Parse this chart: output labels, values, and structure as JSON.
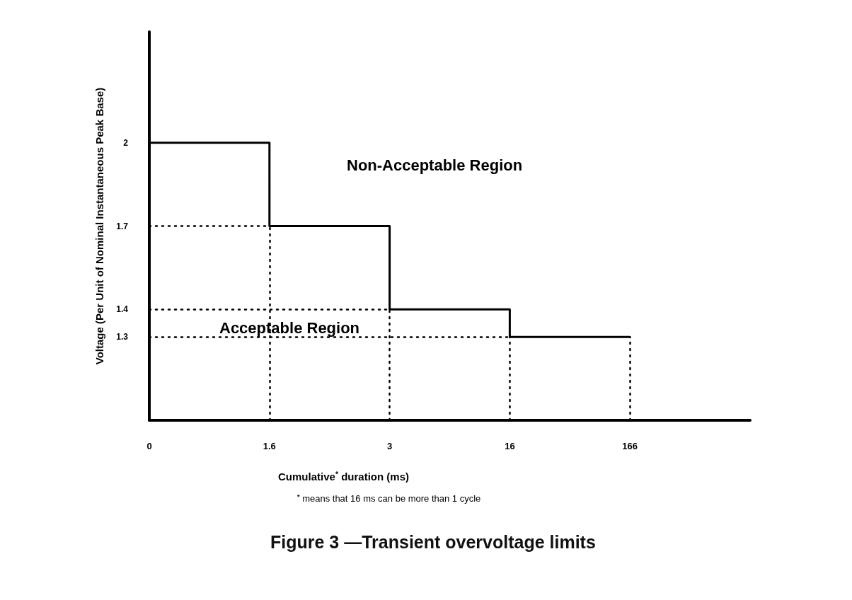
{
  "chart_data": {
    "type": "step",
    "title": "Figure 3 —Transient overvoltage limits",
    "xlabel": "Cumulative$^{*}$ duration (ms)",
    "ylabel": "Voltage (Per Unit of Nominal Instantaneous Peak Base)",
    "categories": [
      "0",
      "1.6",
      "3",
      "16",
      "166"
    ],
    "series": [
      {
        "color": "#000000",
        "values": [
          2,
          2,
          1.7,
          1.4,
          1.3
        ]
      }
    ],
    "ylim": [
      1,
      2.4
    ],
    "yticks": [
      1.3,
      1.4,
      1.7,
      2
    ],
    "grid": false,
    "marker": "none",
    "line_style": "solid",
    "ref_lines": [
      {
        "axis": "y",
        "value": 1.7,
        "line_style": "dotted",
        "color": "#000000"
      },
      {
        "axis": "y",
        "value": 1.4,
        "line_style": "dotted",
        "color": "#000000"
      },
      {
        "axis": "y",
        "value": 1.3,
        "line_style": "dotted",
        "color": "#000000"
      },
      {
        "axis": "x",
        "value": "1.6",
        "line_style": "dotted",
        "color": "#000000"
      },
      {
        "axis": "x",
        "value": "3",
        "line_style": "dotted",
        "color": "#000000"
      },
      {
        "axis": "x",
        "value": "16",
        "line_style": "dotted",
        "color": "#000000"
      },
      {
        "axis": "x",
        "value": "166",
        "line_style": "dotted",
        "color": "#000000"
      }
    ],
    "annotations": [
      "Non-Acceptable Region",
      "Acceptable Region",
      "$^{*}$ means that 16 ms can be more than 1 cycle"
    ]
  }
}
